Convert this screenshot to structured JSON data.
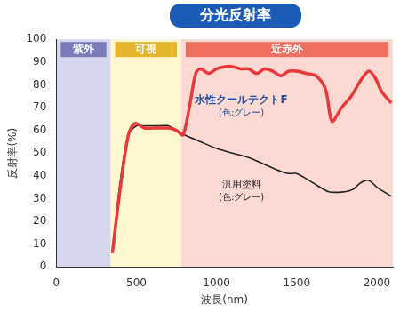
{
  "chart_data": {
    "type": "line",
    "title": "分光反射率",
    "x_label": "波長(nm)",
    "y_label": "反射率(%)",
    "xlim": [
      0,
      2100
    ],
    "xticks": [
      0,
      500,
      1000,
      1500,
      2000
    ],
    "ylim": [
      0,
      100
    ],
    "yticks": [
      0,
      10,
      20,
      30,
      40,
      50,
      60,
      70,
      80,
      90,
      100
    ],
    "grid": false,
    "bands": [
      {
        "label": "紫外",
        "range": [
          0,
          340
        ],
        "color": "#d6d6ee",
        "label_color": "#7b7bb8"
      },
      {
        "label": "可視",
        "range": [
          340,
          780
        ],
        "color": "#fff7cf",
        "label_color": "#e6b52e"
      },
      {
        "label": "近赤外",
        "range": [
          780,
          2100
        ],
        "color": "#fcd9d2",
        "label_color": "#ef6f5f"
      }
    ],
    "series": [
      {
        "name": "水性クールテクトF",
        "subtitle": "(色:グレー)",
        "color": "#e8393a",
        "x": [
          350,
          400,
          450,
          490,
          550,
          600,
          650,
          700,
          750,
          790,
          830,
          870,
          900,
          950,
          1000,
          1050,
          1100,
          1150,
          1200,
          1250,
          1300,
          1350,
          1400,
          1450,
          1500,
          1560,
          1620,
          1680,
          1720,
          1780,
          1840,
          1900,
          1950,
          1990,
          2030,
          2090
        ],
        "values": [
          6,
          35,
          58,
          63,
          61,
          61,
          61,
          61,
          60,
          58,
          70,
          85,
          87,
          85,
          87,
          88,
          88,
          87,
          87,
          85,
          87,
          86,
          84,
          86,
          86,
          85,
          84,
          78,
          64,
          70,
          75,
          82,
          86,
          83,
          77,
          72
        ]
      },
      {
        "name": "汎用塗料",
        "subtitle": "(色:グレー)",
        "color": "#222222",
        "x": [
          350,
          400,
          450,
          500,
          550,
          600,
          650,
          700,
          750,
          800,
          900,
          1000,
          1100,
          1200,
          1300,
          1400,
          1450,
          1500,
          1600,
          1700,
          1800,
          1850,
          1900,
          1950,
          2000,
          2090
        ],
        "values": [
          7,
          38,
          58,
          62,
          62,
          62,
          62,
          62,
          60,
          58,
          55,
          52,
          50,
          48,
          45,
          42,
          41,
          41,
          37,
          33,
          33,
          34,
          37,
          38,
          35,
          31
        ]
      }
    ]
  }
}
